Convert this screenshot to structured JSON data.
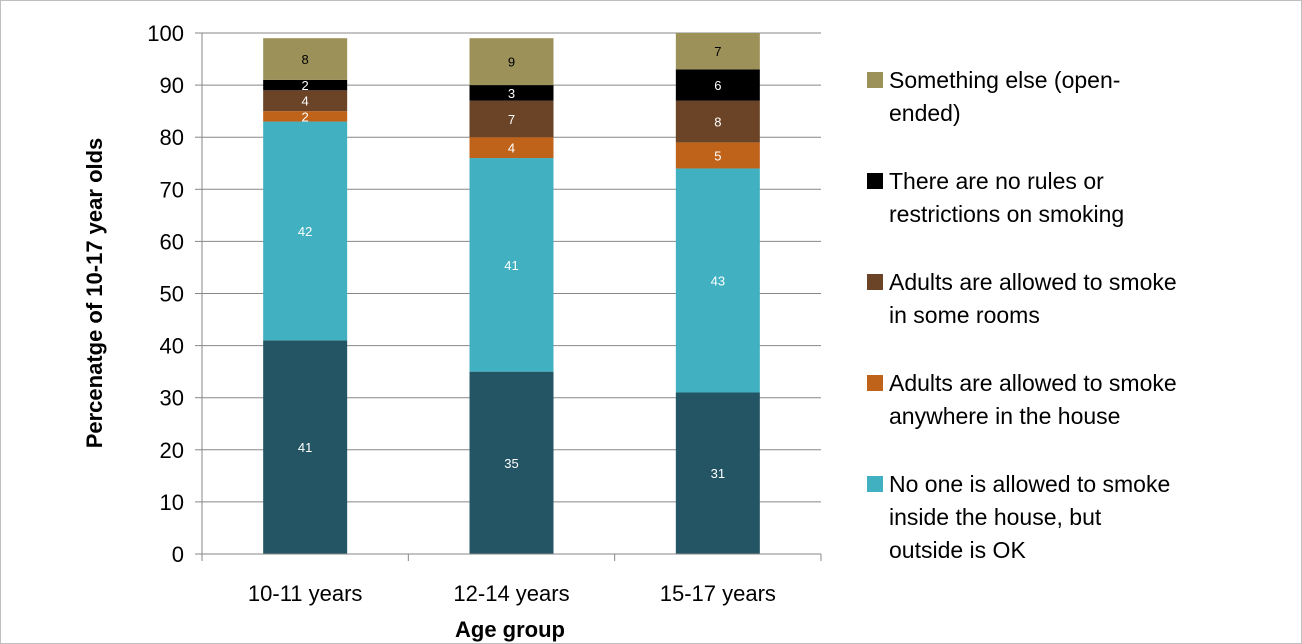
{
  "chart_data": {
    "type": "bar",
    "stacked": true,
    "title": "",
    "xlabel": "Age group",
    "ylabel": "Percenatge of 10-17 year olds",
    "ylim": [
      0,
      100
    ],
    "yticks": [
      0,
      10,
      20,
      30,
      40,
      50,
      60,
      70,
      80,
      90,
      100
    ],
    "grid": true,
    "legend_position": "right",
    "categories": [
      "10-11 years",
      "12-14 years",
      "15-17 years"
    ],
    "series": [
      {
        "name": "",
        "color": "#245564",
        "label_color": "#ffffff",
        "values": [
          41,
          35,
          31
        ]
      },
      {
        "name": "No one is allowed to smoke inside the house, but outside is OK",
        "legend_lines": [
          "No one is allowed to smoke",
          "inside the house, but",
          "outside is OK"
        ],
        "color": "#41B1C2",
        "label_color": "#ffffff",
        "values": [
          42,
          41,
          43
        ]
      },
      {
        "name": "Adults are allowed to smoke anywhere in the house",
        "legend_lines": [
          "Adults are allowed to smoke",
          "anywhere in the house"
        ],
        "color": "#C0631A",
        "label_color": "#ffffff",
        "values": [
          2,
          4,
          5
        ]
      },
      {
        "name": "Adults are allowed to smoke in some rooms",
        "legend_lines": [
          "Adults are allowed to smoke",
          "in some rooms"
        ],
        "color": "#6B4427",
        "label_color": "#ffffff",
        "values": [
          4,
          7,
          8
        ]
      },
      {
        "name": "There are no rules or restrictions on smoking",
        "legend_lines": [
          "There are no rules or",
          "restrictions on smoking"
        ],
        "color": "#000000",
        "label_color": "#ffffff",
        "values": [
          2,
          3,
          6
        ]
      },
      {
        "name": "Something else (open-ended)",
        "legend_lines": [
          "Something else (open-",
          "ended)"
        ],
        "color": "#9C9159",
        "label_color": "#000000",
        "values": [
          8,
          9,
          7
        ]
      }
    ],
    "legend_order": [
      5,
      4,
      3,
      2,
      1
    ]
  }
}
